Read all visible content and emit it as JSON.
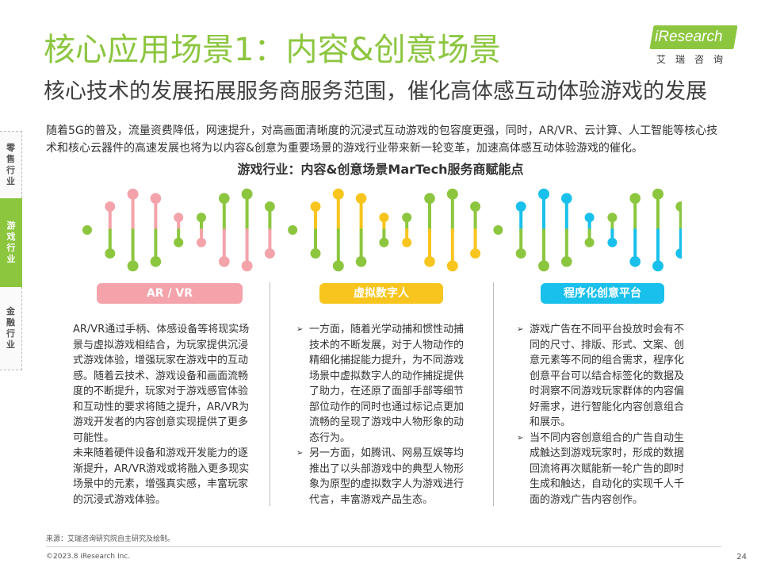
{
  "header": {
    "title": "核心应用场景1：内容&创意场景",
    "subtitle": "核心技术的发展拓展服务商服务范围，催化高体感互动体验游戏的发展"
  },
  "logo": {
    "text": "iResearch",
    "cn": "艾瑞咨询"
  },
  "side_tabs": [
    {
      "label": "零售行业",
      "active": false
    },
    {
      "label": "游戏行业",
      "active": true
    },
    {
      "label": "金融行业",
      "active": false
    }
  ],
  "intro": "随着5G的普及，流量资费降低，网速提升，对高画面清晰度的沉浸式互动游戏的包容度更强，同时，AR/VR、云计算、人工智能等核心技术和核心云器件的高速发展也将为以内容&创意为重要场景的游戏行业带来新一轮变革，加速高体感互动体验游戏的催化。",
  "diagram": {
    "title": "游戏行业：内容&创意场景MarTech服务商赋能点",
    "colors": {
      "pink": "#f4a3ab",
      "green": "#8cc63f",
      "yellow": "#f7c51e",
      "blue": "#19c0eb"
    }
  },
  "columns": [
    {
      "label": "AR / VR",
      "paragraphs": [
        "AR/VR通过手柄、体感设备等将现实场景与虚拟游戏相结合，为玩家提供沉浸式游戏体验，增强玩家在游戏中的互动感。随着云技术、游戏设备和画面流畅度的不断提升，玩家对于游戏感官体验和互动性的要求将随之提升，AR/VR为游戏开发者的内容创意实现提供了更多可能性。",
        "未来随着硬件设备和游戏开发能力的逐渐提升，AR/VR游戏或将融入更多现实场景中的元素，增强真实感，丰富玩家的沉浸式游戏体验。"
      ]
    },
    {
      "label": "虚拟数字人",
      "bullets": [
        "一方面，随着光学动捕和惯性动捕技术的不断发展，对于人物动作的精细化捕捉能力提升，为不同游戏场景中虚拟数字人的动作捕捉提供了助力，在还原了面部手部等细节部位动作的同时也通过标记点更加流畅的呈现了游戏中人物形象的动态行为。",
        "另一方面，如腾讯、网易互娱等均推出了以头部游戏中的典型人物形象为原型的虚拟数字人为游戏进行代言，丰富游戏产品生态。"
      ]
    },
    {
      "label": "程序化创意平台",
      "bullets": [
        "游戏广告在不同平台投放时会有不同的尺寸、排版、形式、文案、创意元素等不同的组合需求，程序化创意平台可以结合标签化的数据及时洞察不同游戏玩家群体的内容偏好需求，进行智能化内容创意组合和展示。",
        "当不同内容创意组合的广告自动生成触达到游戏玩家时，形成的数据回流将再次赋能新一轮广告的即时生成和触达，自动化的实现千人千面的游戏广告内容创作。"
      ]
    }
  ],
  "footer": {
    "source": "来源：艾瑞咨询研究院自主研究及绘制。",
    "copyright": "©2023.8 iResearch Inc.",
    "page": "24"
  }
}
